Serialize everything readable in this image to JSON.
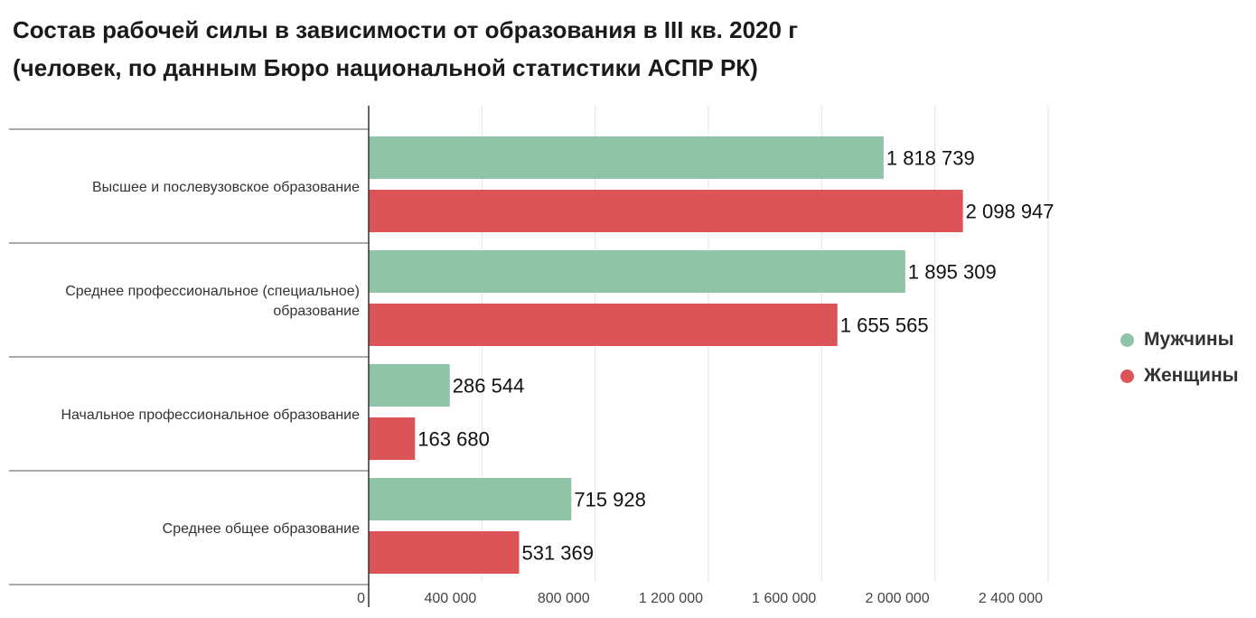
{
  "title": {
    "line1": "Состав рабочей силы в зависимости от образования в III кв. 2020 г",
    "line2": "(человек, по данным Бюро национальной статистики АСПР РК)"
  },
  "chart_data": {
    "type": "bar",
    "orientation": "horizontal",
    "categories": [
      [
        "Высшее и послевузовское образование"
      ],
      [
        "Среднее профессиональное (специальное)",
        "образование"
      ],
      [
        "Начальное профессиональное образование"
      ],
      [
        "Среднее общее образование"
      ]
    ],
    "series": [
      {
        "name": "Мужчины",
        "color": "#8fc4a6",
        "values": [
          1818739,
          1895309,
          286544,
          715928
        ],
        "labels": [
          "1 818 739",
          "1 895 309",
          "286 544",
          "715 928"
        ]
      },
      {
        "name": "Женщины",
        "color": "#dd5458",
        "values": [
          2098947,
          1655565,
          163680,
          531369
        ],
        "labels": [
          "2 098 947",
          "1 655 565",
          "163 680",
          "531 369"
        ]
      }
    ],
    "xlim": [
      0,
      2400000
    ],
    "x_ticks": [
      0,
      400000,
      800000,
      1200000,
      1600000,
      2000000,
      2400000
    ],
    "x_tick_labels": [
      "0",
      "400 000",
      "800 000",
      "1 200 000",
      "1 600 000",
      "2 000 000",
      "2 400 000"
    ],
    "grid": true,
    "legend_position": "right"
  }
}
